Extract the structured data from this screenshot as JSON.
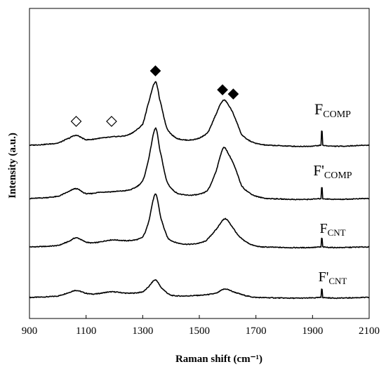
{
  "chart_data": {
    "type": "line",
    "xlabel": "Raman shift (cm⁻¹)",
    "ylabel": "Intensity (a.u.)",
    "xlim": [
      900,
      2100
    ],
    "x_ticks": [
      900,
      1100,
      1300,
      1500,
      1700,
      1900,
      2100
    ],
    "y_ticks": [],
    "grid": false,
    "legend": "none",
    "line_color": "#000000",
    "series": [
      {
        "name": "F'CNT",
        "label_main": "F'",
        "label_sub": "CNT",
        "points": [
          [
            900,
            0
          ],
          [
            1000,
            0.02
          ],
          [
            1040,
            0.07
          ],
          [
            1065,
            0.1
          ],
          [
            1100,
            0.06
          ],
          [
            1130,
            0.05
          ],
          [
            1190,
            0.08
          ],
          [
            1250,
            0.06
          ],
          [
            1300,
            0.08
          ],
          [
            1320,
            0.15
          ],
          [
            1345,
            0.25
          ],
          [
            1365,
            0.14
          ],
          [
            1400,
            0.03
          ],
          [
            1500,
            0.03
          ],
          [
            1560,
            0.06
          ],
          [
            1590,
            0.12
          ],
          [
            1620,
            0.08
          ],
          [
            1660,
            0.03
          ],
          [
            1700,
            0
          ],
          [
            1930,
            0
          ],
          [
            1932,
            0.12
          ],
          [
            1934,
            0
          ],
          [
            2100,
            0
          ]
        ]
      },
      {
        "name": "FCNT",
        "label_main": "F",
        "label_sub": "CNT",
        "points": [
          [
            900,
            0
          ],
          [
            1000,
            0.02
          ],
          [
            1040,
            0.08
          ],
          [
            1065,
            0.13
          ],
          [
            1100,
            0.07
          ],
          [
            1130,
            0.06
          ],
          [
            1190,
            0.1
          ],
          [
            1250,
            0.09
          ],
          [
            1300,
            0.14
          ],
          [
            1320,
            0.35
          ],
          [
            1345,
            0.75
          ],
          [
            1365,
            0.4
          ],
          [
            1390,
            0.12
          ],
          [
            1450,
            0.04
          ],
          [
            1520,
            0.08
          ],
          [
            1560,
            0.25
          ],
          [
            1590,
            0.4
          ],
          [
            1610,
            0.32
          ],
          [
            1640,
            0.15
          ],
          [
            1680,
            0.04
          ],
          [
            1720,
            0
          ],
          [
            1930,
            0
          ],
          [
            1932,
            0.12
          ],
          [
            1934,
            0
          ],
          [
            2100,
            0
          ]
        ]
      },
      {
        "name": "F'COMP",
        "label_main": "F'",
        "label_sub": "COMP",
        "points": [
          [
            900,
            0
          ],
          [
            1000,
            0.03
          ],
          [
            1040,
            0.1
          ],
          [
            1065,
            0.14
          ],
          [
            1100,
            0.07
          ],
          [
            1150,
            0.09
          ],
          [
            1200,
            0.1
          ],
          [
            1260,
            0.13
          ],
          [
            1300,
            0.25
          ],
          [
            1320,
            0.55
          ],
          [
            1345,
            1.0
          ],
          [
            1360,
            0.7
          ],
          [
            1385,
            0.25
          ],
          [
            1420,
            0.08
          ],
          [
            1480,
            0.05
          ],
          [
            1530,
            0.12
          ],
          [
            1560,
            0.4
          ],
          [
            1585,
            0.72
          ],
          [
            1605,
            0.62
          ],
          [
            1625,
            0.45
          ],
          [
            1650,
            0.18
          ],
          [
            1690,
            0.05
          ],
          [
            1740,
            0
          ],
          [
            1930,
            0
          ],
          [
            1932,
            0.15
          ],
          [
            1934,
            0
          ],
          [
            2100,
            0
          ]
        ]
      },
      {
        "name": "FCOMP",
        "label_main": "F",
        "label_sub": "COMP",
        "points": [
          [
            900,
            0
          ],
          [
            1000,
            0.03
          ],
          [
            1040,
            0.1
          ],
          [
            1065,
            0.14
          ],
          [
            1100,
            0.08
          ],
          [
            1150,
            0.1
          ],
          [
            1195,
            0.12
          ],
          [
            1250,
            0.15
          ],
          [
            1300,
            0.3
          ],
          [
            1320,
            0.6
          ],
          [
            1345,
            0.9
          ],
          [
            1360,
            0.65
          ],
          [
            1385,
            0.25
          ],
          [
            1420,
            0.1
          ],
          [
            1480,
            0.08
          ],
          [
            1530,
            0.18
          ],
          [
            1560,
            0.45
          ],
          [
            1585,
            0.64
          ],
          [
            1605,
            0.56
          ],
          [
            1625,
            0.4
          ],
          [
            1650,
            0.15
          ],
          [
            1690,
            0.04
          ],
          [
            1740,
            0
          ],
          [
            1930,
            0
          ],
          [
            1932,
            0.2
          ],
          [
            1934,
            0
          ],
          [
            2100,
            0
          ]
        ]
      }
    ],
    "markers": [
      {
        "x": 1345,
        "series": "FCOMP",
        "shape": "filled-diamond"
      },
      {
        "x": 1582,
        "series": "FCOMP",
        "shape": "filled-diamond"
      },
      {
        "x": 1620,
        "series": "FCOMP",
        "shape": "filled-diamond"
      },
      {
        "x": 1065,
        "series": "FCOMP",
        "shape": "open-diamond"
      },
      {
        "x": 1190,
        "series": "FCOMP",
        "shape": "open-diamond"
      }
    ]
  }
}
